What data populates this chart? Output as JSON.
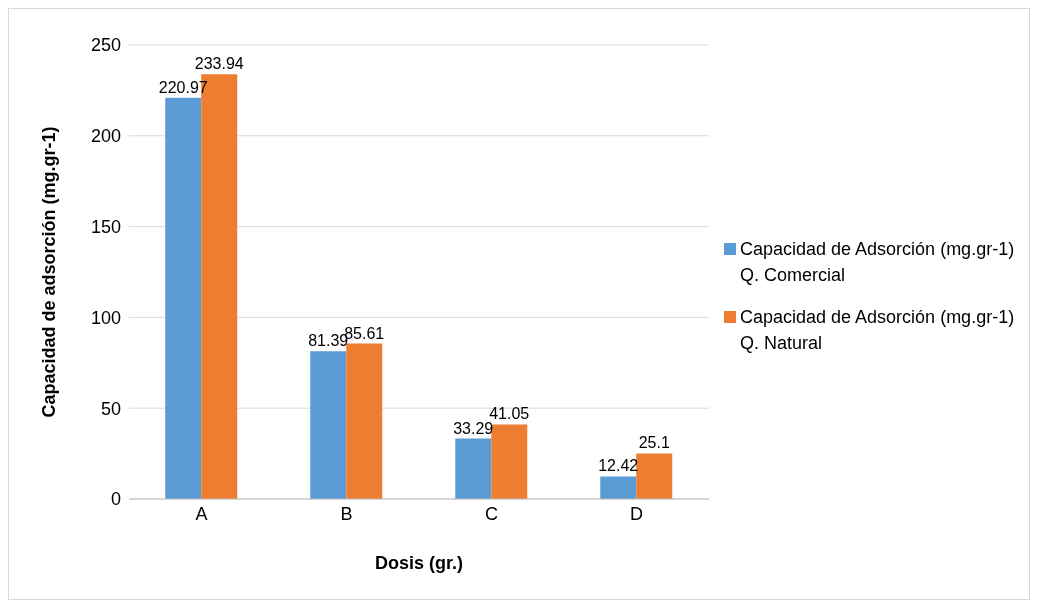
{
  "chart_data": {
    "type": "bar",
    "xlabel": "Dosis (gr.)",
    "ylabel": "Capacidad de adsorción (mg.gr-1)",
    "categories": [
      "A",
      "B",
      "C",
      "D"
    ],
    "series": [
      {
        "name": "Capacidad de Adsorción (mg.gr-1) Q. Comercial",
        "color": "#5b9bd5",
        "values": [
          220.97,
          81.39,
          33.29,
          12.42
        ]
      },
      {
        "name": "Capacidad de Adsorción (mg.gr-1) Q. Natural",
        "color": "#ed7d31",
        "values": [
          233.94,
          85.61,
          41.05,
          25.1
        ]
      }
    ],
    "ylim": [
      0,
      250
    ],
    "yticks": [
      0,
      50,
      100,
      150,
      200,
      250
    ],
    "grid": "y",
    "legend": "right",
    "data_labels": true
  }
}
